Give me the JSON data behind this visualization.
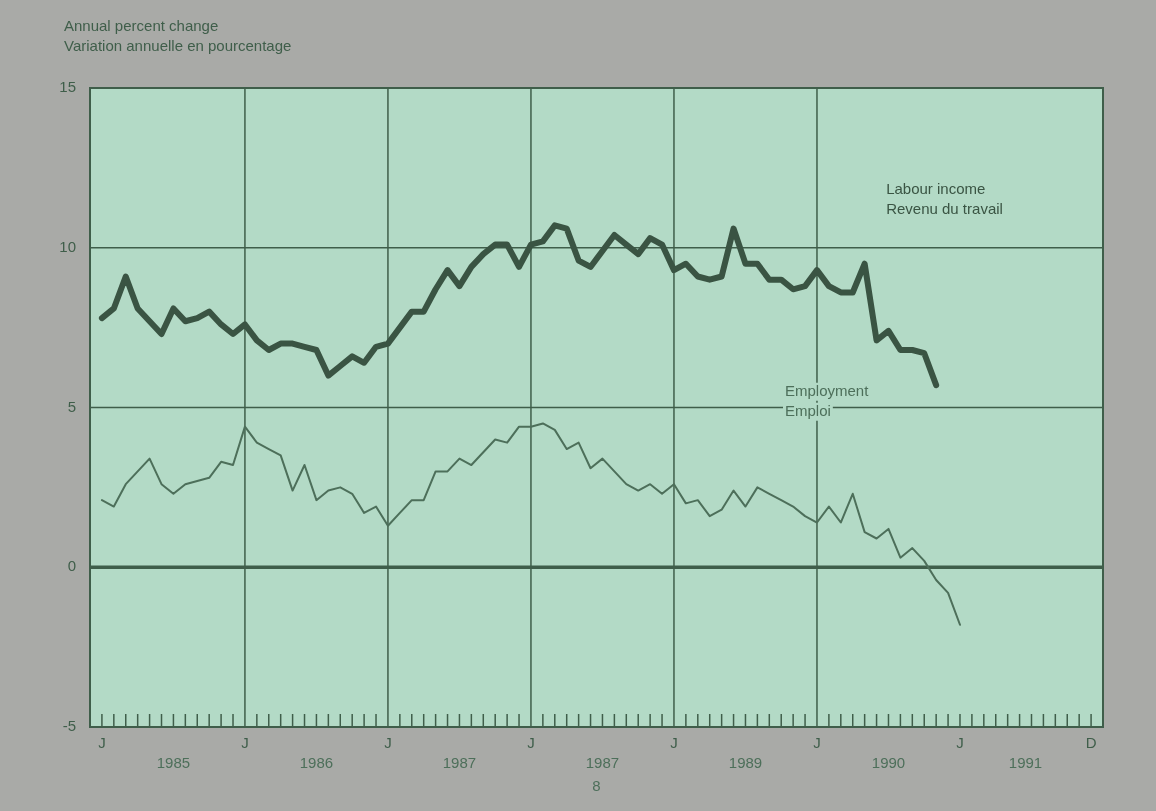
{
  "chart_data": {
    "type": "line",
    "ylabel": "Annual percent change\nVariation annuelle en pourcentage",
    "annotations": [
      "1985",
      "1986",
      "1987",
      "1987",
      "1989",
      "1990",
      "1991",
      "8"
    ],
    "categories": [
      "J",
      null,
      null,
      null,
      null,
      null,
      null,
      null,
      null,
      null,
      null,
      null,
      "J",
      null,
      null,
      null,
      null,
      null,
      null,
      null,
      null,
      null,
      null,
      null,
      "J",
      null,
      null,
      null,
      null,
      null,
      null,
      null,
      null,
      null,
      null,
      null,
      "J",
      null,
      null,
      null,
      null,
      null,
      null,
      null,
      null,
      null,
      null,
      null,
      "J",
      null,
      null,
      null,
      null,
      null,
      null,
      null,
      null,
      null,
      null,
      null,
      "J",
      null,
      null,
      null,
      null,
      null,
      null,
      null,
      null,
      null,
      null,
      null,
      "J",
      null,
      null,
      null,
      null,
      null,
      null,
      null,
      null,
      null,
      null,
      "D"
    ],
    "ylim": [
      -5,
      15
    ],
    "yticks": [
      -5,
      0,
      5,
      10,
      15
    ],
    "grid": true,
    "ref_lines": [
      {
        "axis": "y",
        "value": 0
      }
    ],
    "series": [
      {
        "name": "Labour income\nRevenu du travail",
        "color": "#3a5443",
        "values": [
          7.8,
          8.1,
          9.1,
          8.1,
          7.7,
          7.3,
          8.1,
          7.7,
          7.8,
          8.0,
          7.6,
          7.3,
          7.6,
          7.1,
          6.8,
          7.0,
          7.0,
          6.9,
          6.8,
          6.0,
          6.3,
          6.6,
          6.4,
          6.9,
          7.0,
          7.5,
          8.0,
          8.0,
          8.7,
          9.3,
          8.8,
          9.4,
          9.8,
          10.1,
          10.1,
          9.4,
          10.1,
          10.2,
          10.7,
          10.6,
          9.6,
          9.4,
          9.9,
          10.4,
          10.1,
          9.8,
          10.3,
          10.1,
          9.3,
          9.5,
          9.1,
          9.0,
          9.1,
          10.6,
          9.5,
          9.5,
          9.0,
          9.0,
          8.7,
          8.8,
          9.3,
          8.8,
          8.6,
          8.6,
          9.5,
          7.1,
          7.4,
          6.8,
          6.8,
          6.7,
          5.7,
          null,
          null,
          null,
          null,
          null,
          null,
          null,
          null,
          null,
          null,
          null,
          null,
          null
        ]
      },
      {
        "name": "Employment\nEmploi",
        "color": "#4d6f5a",
        "values": [
          2.1,
          1.9,
          2.6,
          3.0,
          3.4,
          2.6,
          2.3,
          2.6,
          2.7,
          2.8,
          3.3,
          3.2,
          4.4,
          3.9,
          3.7,
          3.5,
          2.4,
          3.2,
          2.1,
          2.4,
          2.5,
          2.3,
          1.7,
          1.9,
          1.3,
          1.7,
          2.1,
          2.1,
          3.0,
          3.0,
          3.4,
          3.2,
          3.6,
          4.0,
          3.9,
          4.4,
          4.4,
          4.5,
          4.3,
          3.7,
          3.9,
          3.1,
          3.4,
          3.0,
          2.6,
          2.4,
          2.6,
          2.3,
          2.6,
          2.0,
          2.1,
          1.6,
          1.8,
          2.4,
          1.9,
          2.5,
          2.3,
          2.1,
          1.9,
          1.6,
          1.4,
          1.9,
          1.4,
          2.3,
          1.1,
          0.9,
          1.2,
          0.3,
          0.6,
          0.2,
          -0.4,
          -0.8,
          -1.8,
          null,
          null,
          null,
          null,
          null,
          null,
          null,
          null,
          null,
          null,
          null
        ]
      }
    ]
  }
}
